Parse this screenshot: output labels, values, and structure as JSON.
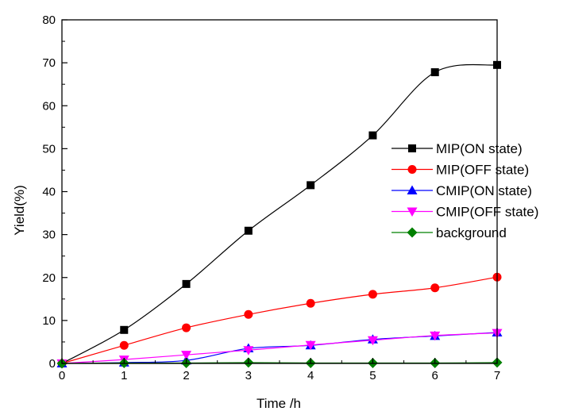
{
  "chart_data": {
    "type": "line",
    "title": "",
    "xlabel": "Time /h",
    "ylabel": "Yield(%)",
    "xlim": [
      0,
      7
    ],
    "ylim": [
      0,
      80
    ],
    "x_ticks": [
      "0",
      "1",
      "2",
      "3",
      "4",
      "5",
      "6",
      "7"
    ],
    "y_ticks": [
      "0",
      "10",
      "20",
      "30",
      "40",
      "50",
      "60",
      "70",
      "80"
    ],
    "grid": false,
    "legend_position": "right-middle",
    "series": [
      {
        "name": "MIP(ON state)",
        "color": "#000000",
        "marker": "square",
        "x": [
          0,
          1,
          2,
          3,
          4,
          5,
          6,
          7
        ],
        "y": [
          0,
          7.8,
          18.5,
          30.9,
          41.5,
          53.1,
          67.8,
          69.5
        ]
      },
      {
        "name": "MIP(OFF state)",
        "color": "#ff0000",
        "marker": "circle",
        "x": [
          0,
          1,
          2,
          3,
          4,
          5,
          6,
          7
        ],
        "y": [
          0,
          4.2,
          8.3,
          11.4,
          14.0,
          16.1,
          17.6,
          20.1
        ]
      },
      {
        "name": "CMIP(ON state)",
        "color": "#0000ff",
        "marker": "triangle-up",
        "x": [
          0,
          1,
          2,
          3,
          4,
          5,
          6,
          7
        ],
        "y": [
          0,
          0.2,
          0.7,
          3.5,
          4.2,
          5.6,
          6.4,
          7.2
        ]
      },
      {
        "name": "CMIP(OFF state)",
        "color": "#ff00ff",
        "marker": "triangle-down",
        "x": [
          0,
          1,
          2,
          3,
          4,
          5,
          6,
          7
        ],
        "y": [
          0,
          0.9,
          2.0,
          3.1,
          4.3,
          5.4,
          6.5,
          7.1
        ]
      },
      {
        "name": "background",
        "color": "#008000",
        "marker": "diamond",
        "x": [
          0,
          1,
          2,
          3,
          4,
          5,
          6,
          7
        ],
        "y": [
          0,
          0.1,
          0.1,
          0.2,
          0.1,
          0.1,
          0.1,
          0.2
        ]
      }
    ]
  }
}
